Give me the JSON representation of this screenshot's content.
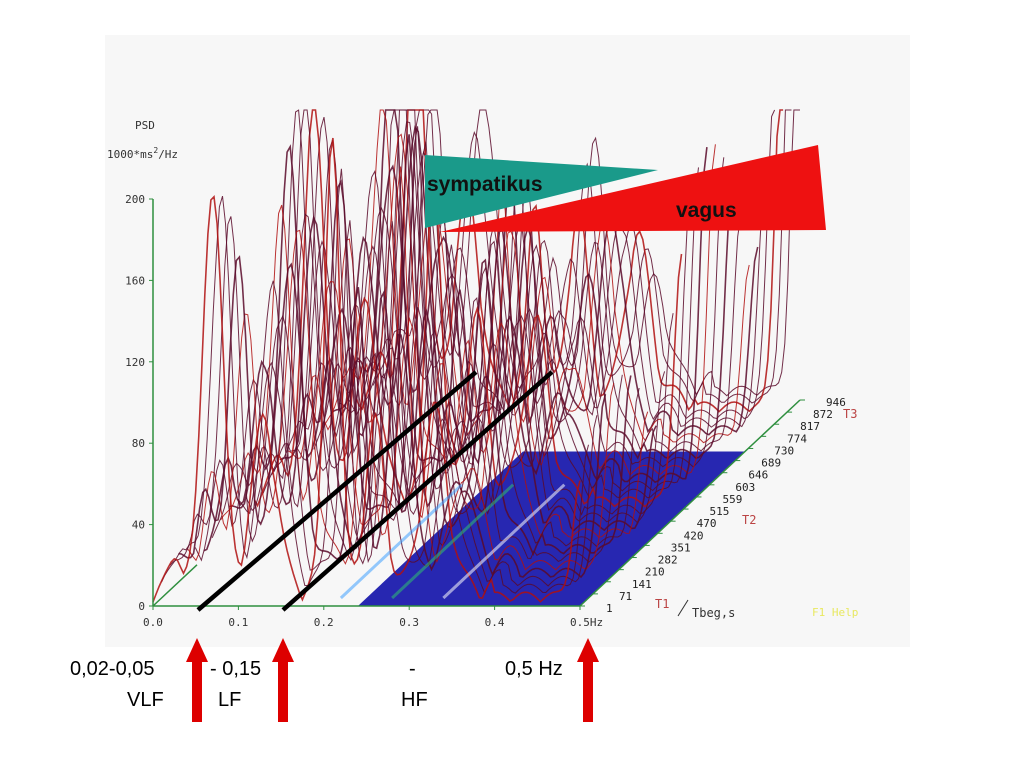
{
  "chart_data": {
    "type": "area",
    "title": "",
    "ylabel": "PSD",
    "yunit_prefix": "1000*ms",
    "yunit_sup": "2",
    "yunit_suffix": "/Hz",
    "xlim": [
      0,
      0.5
    ],
    "ylim": [
      0,
      200
    ],
    "x_ticks": [
      "0.0",
      "0.1",
      "0.2",
      "0.3",
      "0.4",
      "0.5Hz"
    ],
    "y_ticks": [
      "0",
      "40",
      "80",
      "120",
      "160",
      "200"
    ],
    "depth_ticks": [
      "1",
      "71",
      "141",
      "210",
      "282",
      "351",
      "420",
      "470",
      "515",
      "559",
      "603",
      "646",
      "689",
      "730",
      "774",
      "817",
      "872",
      "946"
    ],
    "depth_axis_label": "Tbeg,s",
    "depth_markers": [
      "T1",
      "T2",
      "T3"
    ],
    "help_text": "F1 Help",
    "peaks_x": [
      0.03,
      0.07,
      0.13,
      0.21,
      0.26,
      0.33,
      0.5
    ],
    "peaks_y": [
      40,
      200,
      160,
      240,
      120,
      100,
      230
    ]
  },
  "triangles": {
    "sympatikus": "sympatikus",
    "vagus": "vagus",
    "sympatikus_color": "#1a9a8a",
    "vagus_color": "#ee1111"
  },
  "bands": {
    "vlf_range": "0,02-0,05",
    "vlf_name": "VLF",
    "lf_range": "- 0,15",
    "lf_name": "LF",
    "hf_range": "-",
    "hf_name": "HF",
    "upper_limit": "0,5 Hz"
  },
  "colors": {
    "axis": "#2f8f3f",
    "surface_line": "#5a0a2a",
    "surface_accent": "#b01010",
    "surface_fill_blue": "#1010a8",
    "arrow": "#dd0000"
  }
}
